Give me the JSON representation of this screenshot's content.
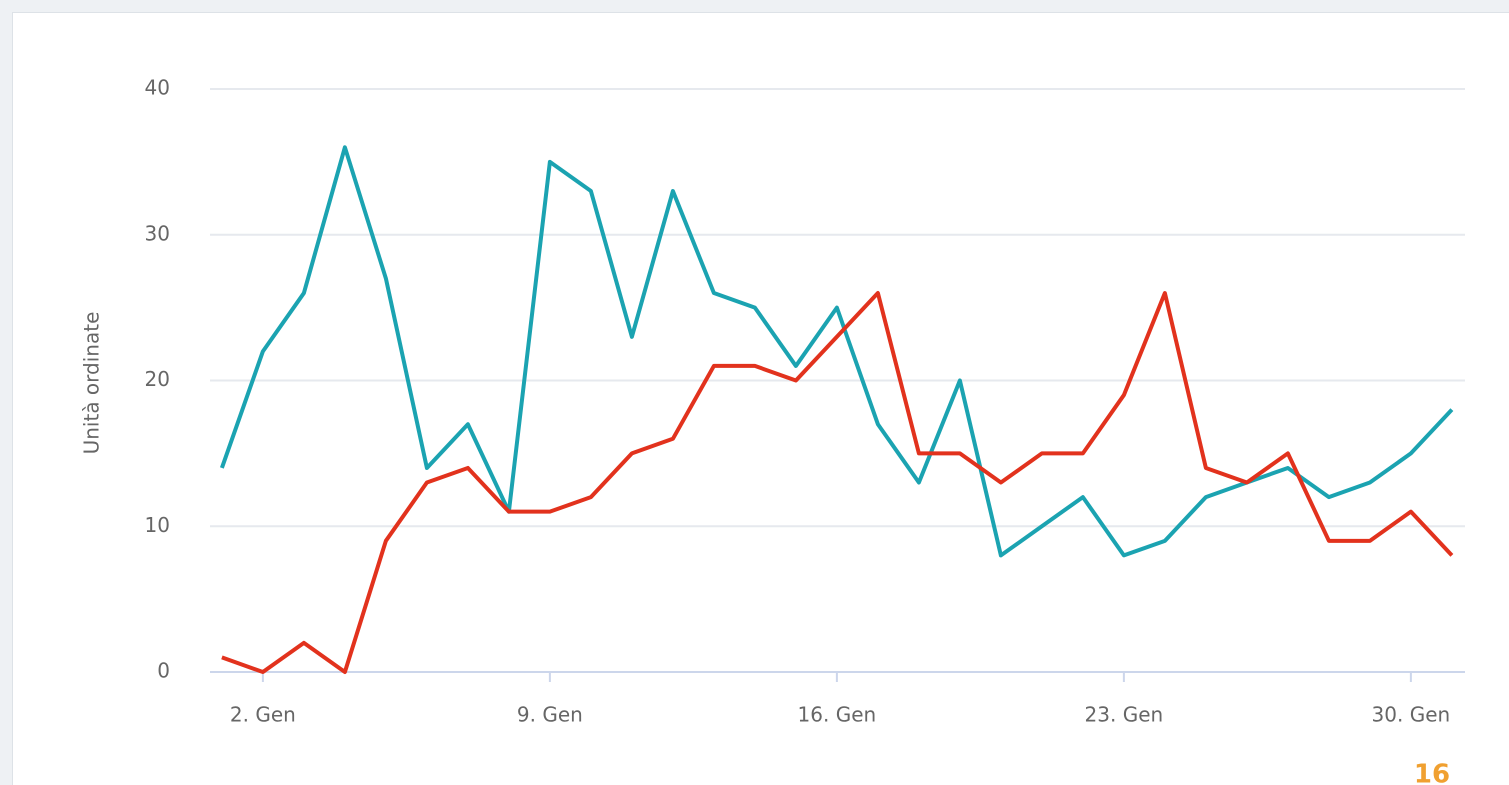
{
  "chart_data": {
    "type": "line",
    "y_axis_label": "Unità ordinate",
    "x": [
      1,
      2,
      3,
      4,
      5,
      6,
      7,
      8,
      9,
      10,
      11,
      12,
      13,
      14,
      15,
      16,
      17,
      18,
      19,
      20,
      21,
      22,
      23,
      24,
      25,
      26,
      27,
      28,
      29,
      30,
      31
    ],
    "series": [
      {
        "color": "#1ba3b1",
        "values": [
          14,
          22,
          26,
          36,
          27,
          14,
          17,
          11,
          35,
          33,
          23,
          33,
          26,
          25,
          21,
          25,
          17,
          13,
          20,
          8,
          10,
          12,
          8,
          9,
          12,
          13,
          14,
          12,
          13,
          15,
          18
        ]
      },
      {
        "color": "#e2321d",
        "values": [
          1,
          0,
          2,
          0,
          9,
          13,
          14,
          11,
          11,
          12,
          15,
          16,
          21,
          21,
          20,
          23,
          26,
          15,
          15,
          13,
          15,
          15,
          19,
          26,
          14,
          13,
          15,
          9,
          9,
          11,
          8
        ]
      }
    ],
    "xlim": [
      0.71,
      31.32
    ],
    "xticks": [
      {
        "value": 2,
        "label": "2. Gen"
      },
      {
        "value": 9,
        "label": "9. Gen"
      },
      {
        "value": 16,
        "label": "16. Gen"
      },
      {
        "value": 23,
        "label": "23. Gen"
      },
      {
        "value": 30,
        "label": "30. Gen"
      }
    ],
    "ylim": [
      0,
      40
    ],
    "yticks": [
      0,
      10,
      20,
      30,
      40
    ],
    "grid": true,
    "annotation": "16"
  }
}
